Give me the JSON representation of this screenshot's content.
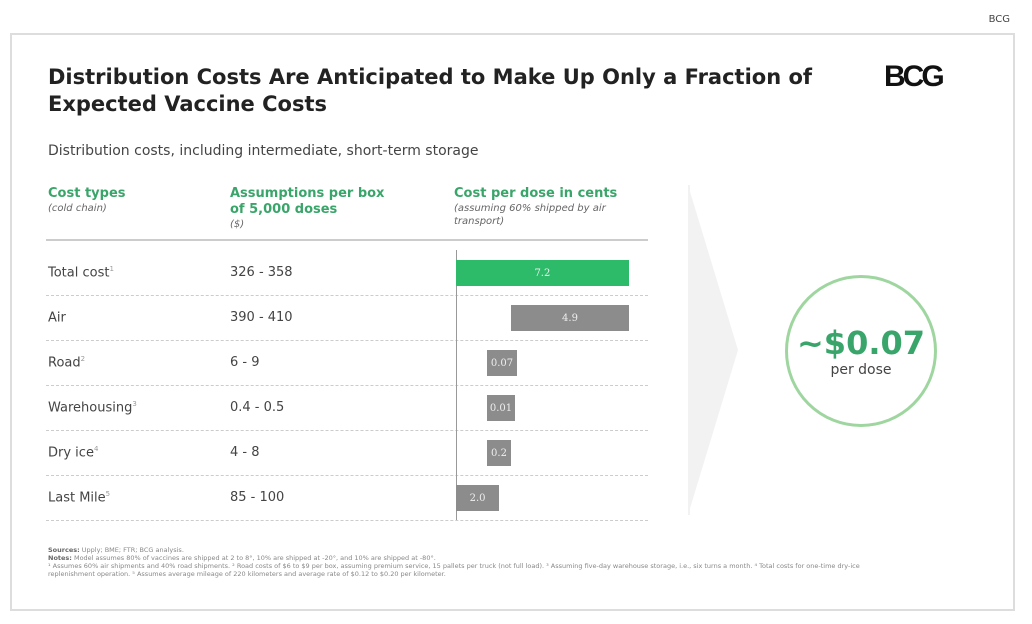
{
  "corner_label": "BCG",
  "title": "Distribution Costs Are Anticipated to Make Up Only a Fraction of Expected Vaccine Costs",
  "logo": "BCG",
  "subtitle": "Distribution costs, including intermediate, short-term storage",
  "headers": {
    "col1": "Cost types",
    "col1_sub": "(cold chain)",
    "col2": "Assumptions per box of 5,000 doses",
    "col2_sub": "($)",
    "col3": "Cost per dose in cents",
    "col3_sub": "(assuming 60% shipped by air transport)"
  },
  "rows": [
    {
      "label": "Total cost",
      "note": "1",
      "range": "326 - 358",
      "value": "7.2",
      "num": 7.2,
      "total": true
    },
    {
      "label": "Air",
      "note": "",
      "range": "390 - 410",
      "value": "4.9",
      "num": 4.9
    },
    {
      "label": "Road",
      "note": "2",
      "range": "6 - 9",
      "value": "0.07",
      "num": 0.07
    },
    {
      "label": "Warehousing",
      "note": "3",
      "range": "0.4 - 0.5",
      "value": "0.01",
      "num": 0.01
    },
    {
      "label": "Dry ice",
      "note": "4",
      "range": "4 - 8",
      "value": "0.2",
      "num": 0.2
    },
    {
      "label": "Last Mile",
      "note": "5",
      "range": "85 - 100",
      "value": "2.0",
      "num": 2.0
    }
  ],
  "colors": {
    "total": "#2dbb6a",
    "component": "#8c8c8c"
  },
  "callout": {
    "value": "~$0.07",
    "label": "per dose"
  },
  "footnotes": {
    "sources_label": "Sources:",
    "sources": "Upply; BME; FTR; BCG analysis.",
    "notes_label": "Notes:",
    "notes": "Model assumes 80% of vaccines are shipped at 2 to 8°, 10% are shipped at -20°, and 10% are shipped at -80°.",
    "details": "¹ Assumes 60% air shipments and 40% road shipments. ² Road costs of $6 to $9 per box, assuming premium service, 15 pallets per truck (not full load). ³ Assuming five-day warehouse storage, i.e., six turns a month. ⁴ Total costs for one-time dry-ice replenishment operation. ⁵ Assumes average mileage of 220 kilometers and average rate of $0.12 to $0.20 per kilometer."
  }
}
